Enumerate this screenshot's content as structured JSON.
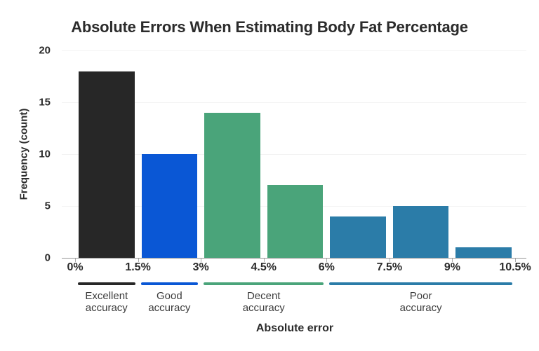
{
  "chart_data": {
    "type": "bar",
    "title": "Absolute Errors When Estimating Body Fat Percentage",
    "xlabel": "Absolute error",
    "ylabel": "Frequency (count)",
    "categories": [
      "0%–1.5%",
      "1.5%–3%",
      "3%–4.5%",
      "4.5%–6%",
      "6%–7.5%",
      "7.5%–9%",
      "9%–10.5%"
    ],
    "values": [
      18,
      10,
      14,
      7,
      4,
      5,
      1
    ],
    "x_tick_labels": [
      "0%",
      "1.5%",
      "3%",
      "4.5%",
      "6%",
      "7.5%",
      "9%",
      "10.5%"
    ],
    "y_ticks": [
      0,
      5,
      10,
      15,
      20
    ],
    "ylim": [
      0,
      20
    ],
    "grid": "horizontal",
    "legend_position": "below",
    "bar_colors": [
      "#272727",
      "#0a57d5",
      "#4aa47a",
      "#4aa47a",
      "#2b7ca8",
      "#2b7ca8",
      "#2b7ca8"
    ],
    "legend": [
      {
        "label": "Excellent\naccuracy",
        "color": "#272727",
        "from_tick": 0,
        "to_tick": 1
      },
      {
        "label": "Good\naccuracy",
        "color": "#0a57d5",
        "from_tick": 1,
        "to_tick": 2
      },
      {
        "label": "Decent\naccuracy",
        "color": "#4aa47a",
        "from_tick": 2,
        "to_tick": 4
      },
      {
        "label": "Poor\naccuracy",
        "color": "#2b7ca8",
        "from_tick": 4,
        "to_tick": 7
      }
    ]
  }
}
